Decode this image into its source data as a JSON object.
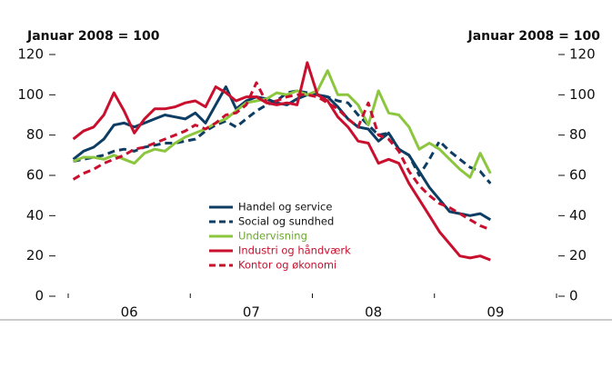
{
  "chart_data": {
    "type": "line",
    "y_label_left": "Januar 2008 = 100",
    "y_label_right": "Januar 2008 = 100",
    "categories": [
      null,
      null,
      null,
      null,
      null,
      null,
      "06",
      null,
      null,
      null,
      null,
      null,
      null,
      null,
      null,
      null,
      null,
      null,
      "07",
      null,
      null,
      null,
      null,
      null,
      null,
      null,
      null,
      null,
      null,
      null,
      "08",
      null,
      null,
      null,
      null,
      null,
      null,
      null,
      null,
      null,
      null,
      null,
      "09",
      null,
      null,
      null,
      null,
      null
    ],
    "ylim": [
      0,
      120
    ],
    "yticks": [
      0,
      20,
      40,
      60,
      80,
      100,
      120
    ],
    "y2lim": [
      0,
      120
    ],
    "y2ticks": [
      0,
      20,
      40,
      60,
      80,
      100,
      120
    ],
    "legend": "center",
    "series": [
      {
        "name": "Handel og service",
        "color": "#0d3d63",
        "dash": false,
        "values": [
          68,
          72,
          74,
          78,
          85,
          86,
          84,
          86,
          88,
          90,
          89,
          88,
          91,
          86,
          95,
          104,
          93,
          97,
          99,
          98,
          96,
          95,
          98,
          100,
          100,
          99,
          94,
          88,
          84,
          83,
          77,
          81,
          73,
          70,
          62,
          54,
          48,
          42,
          41,
          40,
          41,
          38,
          null,
          null,
          null,
          null,
          null,
          null
        ]
      },
      {
        "name": "Social og sundhed",
        "color": "#0d3d63",
        "dash": true,
        "values": [
          67,
          68,
          69,
          70,
          72,
          73,
          72,
          74,
          75,
          76,
          76,
          77,
          78,
          82,
          85,
          87,
          84,
          88,
          92,
          95,
          97,
          101,
          102,
          101,
          100,
          99,
          97,
          96,
          90,
          85,
          80,
          81,
          73,
          70,
          60,
          68,
          77,
          72,
          68,
          64,
          62,
          56,
          null,
          null,
          null,
          null,
          null,
          null
        ]
      },
      {
        "name": "Undervisning",
        "color": "#8cc63f",
        "dash": false,
        "values": [
          67,
          69,
          69,
          68,
          70,
          68,
          66,
          71,
          73,
          72,
          76,
          79,
          81,
          83,
          86,
          88,
          92,
          96,
          97,
          98,
          101,
          100,
          102,
          100,
          102,
          112,
          100,
          100,
          95,
          85,
          102,
          91,
          90,
          84,
          73,
          76,
          73,
          68,
          63,
          59,
          71,
          61,
          null,
          null,
          null,
          null,
          null,
          null
        ]
      },
      {
        "name": "Industri og håndværk",
        "color": "#c8102e",
        "dash": false,
        "values": [
          78,
          82,
          84,
          90,
          101,
          92,
          81,
          88,
          93,
          93,
          94,
          96,
          97,
          94,
          104,
          101,
          97,
          99,
          99,
          96,
          95,
          96,
          95,
          116,
          100,
          97,
          89,
          84,
          77,
          76,
          66,
          68,
          66,
          56,
          48,
          40,
          32,
          26,
          20,
          19,
          20,
          18,
          null,
          null,
          null,
          null,
          null,
          null
        ]
      },
      {
        "name": "Kontor og økonomi",
        "color": "#c8102e",
        "dash": true,
        "values": [
          58,
          61,
          63,
          66,
          68,
          70,
          73,
          74,
          76,
          78,
          80,
          82,
          85,
          83,
          86,
          90,
          91,
          95,
          106,
          96,
          97,
          99,
          100,
          100,
          99,
          96,
          93,
          88,
          84,
          96,
          80,
          78,
          72,
          62,
          55,
          50,
          46,
          44,
          41,
          38,
          35,
          33,
          null,
          null,
          null,
          null,
          null,
          null
        ]
      }
    ]
  }
}
